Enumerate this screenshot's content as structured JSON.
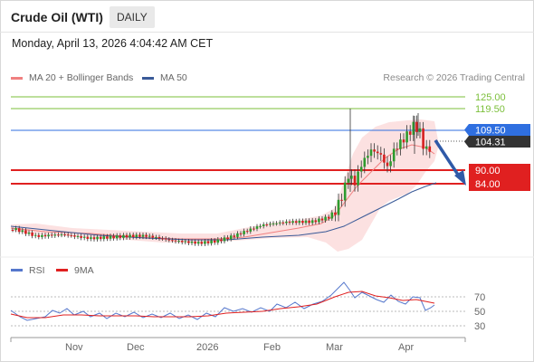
{
  "header": {
    "title": "Crude Oil (WTI)",
    "period_label": "DAILY",
    "datetime": "Monday, April 13, 2026 4:04:42 AM CET"
  },
  "legend": {
    "ma_bollinger": {
      "label": "MA 20 + Bollinger Bands",
      "color": "#f08080"
    },
    "ma50": {
      "label": "MA 50",
      "color": "#3a5a98"
    },
    "rsi": {
      "label": "RSI",
      "color": "#5577cc"
    },
    "ma9": {
      "label": "9MA",
      "color": "#e02020"
    },
    "credit": "Research © 2026 Trading Central"
  },
  "price_levels": [
    {
      "value": "125.00",
      "kind": "resistance",
      "color": "#7bbf3a"
    },
    {
      "value": "119.50",
      "kind": "resistance",
      "color": "#7bbf3a"
    },
    {
      "value": "109.50",
      "kind": "pivot",
      "color": "#2f6fe0"
    },
    {
      "value": "104.31",
      "kind": "last",
      "color": "#333333"
    },
    {
      "value": "90.00",
      "kind": "support",
      "color": "#e02020"
    },
    {
      "value": "84.00",
      "kind": "support",
      "color": "#e02020"
    }
  ],
  "rsi_levels": [
    "70",
    "50",
    "30"
  ],
  "x_axis": [
    "Nov",
    "Dec",
    "2026",
    "Feb",
    "Mar",
    "Apr"
  ],
  "forecast_arrow": {
    "direction": "down",
    "color": "#2f5aa8"
  }
}
